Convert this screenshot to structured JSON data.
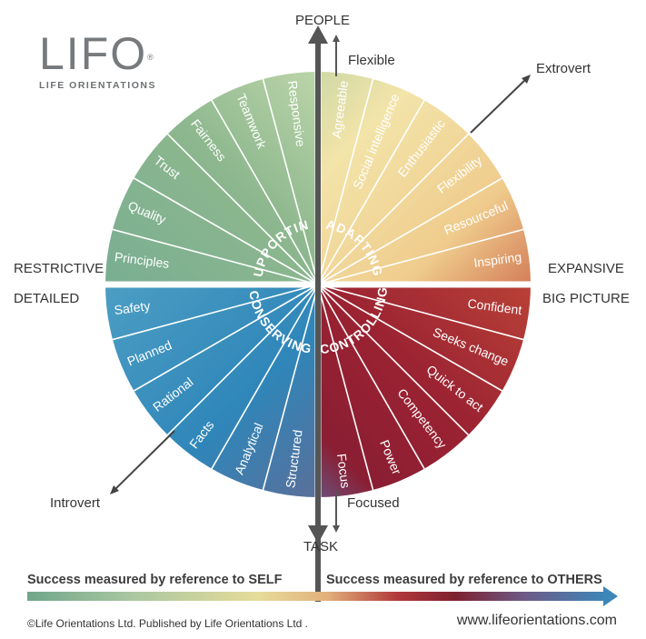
{
  "logo": {
    "word": "LIFO",
    "registered": "®",
    "subtitle": "LIFE ORIENTATIONS"
  },
  "axes": {
    "top": "PEOPLE",
    "bottom": "TASK",
    "left_upper": "RESTRICTIVE",
    "left_lower": "DETAILED",
    "right_upper": "EXPANSIVE",
    "right_lower": "BIG PICTURE",
    "flexible": "Flexible",
    "focused": "Focused",
    "extrovert": "Extrovert",
    "introvert": "Introvert"
  },
  "quadrants": [
    {
      "name": "SUPPORTING",
      "traits": [
        "Principles",
        "Quality",
        "Trust",
        "Fairness",
        "Teamwork",
        "Responsive"
      ]
    },
    {
      "name": "ADAPTING",
      "traits": [
        "Agreeable",
        "Social intelligence",
        "Enthusiastic",
        "Flexibility",
        "Resourceful",
        "Inspiring"
      ]
    },
    {
      "name": "CONTROLLING",
      "traits": [
        "Confident",
        "Seeks change",
        "Quick to act",
        "Competency",
        "Power",
        "Focus"
      ]
    },
    {
      "name": "CONSERVING",
      "traits": [
        "Structured",
        "Analytical",
        "Facts",
        "Rational",
        "Planned",
        "Safety"
      ]
    }
  ],
  "colors": {
    "supporting_light": "#b3cda4",
    "supporting_dark": "#5f9c7f",
    "adapting_light": "#f3e3a7",
    "adapting_dark": "#d4855c",
    "controlling_light": "#b6393a",
    "controlling_dark": "#6d4d7a",
    "conserving_light": "#4b9fc4",
    "conserving_dark": "#2b6fa5"
  },
  "bottom": {
    "self": "Success measured by reference to SELF",
    "others": "Success measured by reference to OTHERS"
  },
  "footer": {
    "copyright": "©Life Orientations Ltd. Published by Life Orientations Ltd .",
    "url": "www.lifeorientations.com"
  }
}
